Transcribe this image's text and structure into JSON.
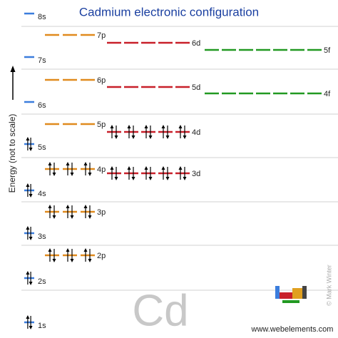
{
  "title": "Cadmium electronic configuration",
  "axis_label": "Energy (not to scale)",
  "symbol": "Cd",
  "website": "www.webelements.com",
  "credit": "© Mark Winter",
  "orbitals": [
    {
      "label": "1s",
      "electrons": 2,
      "color": "#3b7ddd"
    },
    {
      "label": "2s",
      "electrons": 2,
      "color": "#3b7ddd"
    },
    {
      "label": "2p",
      "electrons": 6,
      "color": "#e08a1e"
    },
    {
      "label": "3s",
      "electrons": 2,
      "color": "#3b7ddd"
    },
    {
      "label": "3p",
      "electrons": 6,
      "color": "#e08a1e"
    },
    {
      "label": "4s",
      "electrons": 2,
      "color": "#3b7ddd"
    },
    {
      "label": "3d",
      "electrons": 10,
      "color": "#c8202a"
    },
    {
      "label": "4p",
      "electrons": 6,
      "color": "#e08a1e"
    },
    {
      "label": "5s",
      "electrons": 2,
      "color": "#3b7ddd"
    },
    {
      "label": "4d",
      "electrons": 10,
      "color": "#c8202a"
    },
    {
      "label": "5p",
      "electrons": 0,
      "color": "#e08a1e"
    },
    {
      "label": "6s",
      "electrons": 0,
      "color": "#3b7ddd"
    },
    {
      "label": "4f",
      "electrons": 0,
      "color": "#229922"
    },
    {
      "label": "5d",
      "electrons": 0,
      "color": "#c8202a"
    },
    {
      "label": "6p",
      "electrons": 0,
      "color": "#e08a1e"
    },
    {
      "label": "7s",
      "electrons": 0,
      "color": "#3b7ddd"
    },
    {
      "label": "5f",
      "electrons": 0,
      "color": "#229922"
    },
    {
      "label": "6d",
      "electrons": 0,
      "color": "#c8202a"
    },
    {
      "label": "7p",
      "electrons": 0,
      "color": "#e08a1e"
    },
    {
      "label": "8s",
      "electrons": 0,
      "color": "#3b7ddd"
    }
  ]
}
